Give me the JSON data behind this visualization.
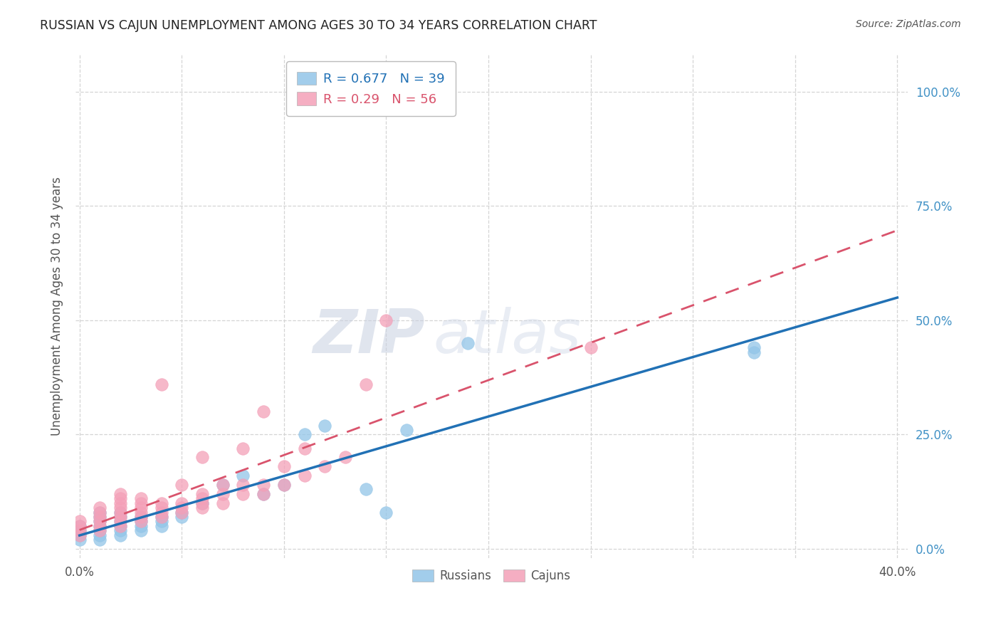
{
  "title": "RUSSIAN VS CAJUN UNEMPLOYMENT AMONG AGES 30 TO 34 YEARS CORRELATION CHART",
  "source": "Source: ZipAtlas.com",
  "ylabel": "Unemployment Among Ages 30 to 34 years",
  "xlim": [
    -0.002,
    0.405
  ],
  "ylim": [
    -0.02,
    1.08
  ],
  "xticks": [
    0.0,
    0.05,
    0.1,
    0.15,
    0.2,
    0.25,
    0.3,
    0.35,
    0.4
  ],
  "xticklabels_show": [
    "0.0%",
    "",
    "",
    "",
    "",
    "",
    "",
    "",
    "40.0%"
  ],
  "yticks": [
    0.0,
    0.25,
    0.5,
    0.75,
    1.0
  ],
  "yticklabels": [
    "0.0%",
    "25.0%",
    "50.0%",
    "75.0%",
    "100.0%"
  ],
  "russian_color": "#92c5e8",
  "cajun_color": "#f4a0b8",
  "russian_line_color": "#2171b5",
  "cajun_line_color": "#d9536c",
  "russian_R": 0.677,
  "russian_N": 39,
  "cajun_R": 0.29,
  "cajun_N": 56,
  "watermark_zip": "ZIP",
  "watermark_atlas": "atlas",
  "russian_scatter_x": [
    0.0,
    0.0,
    0.0,
    0.0,
    0.01,
    0.01,
    0.01,
    0.01,
    0.01,
    0.01,
    0.01,
    0.02,
    0.02,
    0.02,
    0.02,
    0.02,
    0.02,
    0.03,
    0.03,
    0.03,
    0.03,
    0.04,
    0.04,
    0.04,
    0.05,
    0.05,
    0.06,
    0.07,
    0.08,
    0.09,
    0.1,
    0.11,
    0.12,
    0.14,
    0.15,
    0.16,
    0.19,
    0.33,
    0.33
  ],
  "russian_scatter_y": [
    0.02,
    0.03,
    0.04,
    0.05,
    0.02,
    0.03,
    0.04,
    0.05,
    0.06,
    0.07,
    0.08,
    0.03,
    0.04,
    0.05,
    0.06,
    0.07,
    0.08,
    0.04,
    0.05,
    0.06,
    0.07,
    0.05,
    0.06,
    0.07,
    0.08,
    0.07,
    0.1,
    0.14,
    0.16,
    0.12,
    0.14,
    0.25,
    0.27,
    0.13,
    0.08,
    0.26,
    0.45,
    0.43,
    0.44
  ],
  "cajun_scatter_x": [
    0.0,
    0.0,
    0.0,
    0.0,
    0.01,
    0.01,
    0.01,
    0.01,
    0.01,
    0.01,
    0.02,
    0.02,
    0.02,
    0.02,
    0.02,
    0.02,
    0.02,
    0.02,
    0.03,
    0.03,
    0.03,
    0.03,
    0.03,
    0.03,
    0.04,
    0.04,
    0.04,
    0.04,
    0.04,
    0.05,
    0.05,
    0.05,
    0.05,
    0.06,
    0.06,
    0.06,
    0.06,
    0.06,
    0.07,
    0.07,
    0.07,
    0.08,
    0.08,
    0.08,
    0.09,
    0.09,
    0.09,
    0.1,
    0.1,
    0.11,
    0.11,
    0.12,
    0.13,
    0.14,
    0.15,
    0.25
  ],
  "cajun_scatter_y": [
    0.03,
    0.04,
    0.05,
    0.06,
    0.04,
    0.05,
    0.06,
    0.07,
    0.08,
    0.09,
    0.05,
    0.06,
    0.07,
    0.08,
    0.09,
    0.1,
    0.11,
    0.12,
    0.06,
    0.07,
    0.08,
    0.09,
    0.1,
    0.11,
    0.07,
    0.08,
    0.09,
    0.1,
    0.36,
    0.08,
    0.09,
    0.1,
    0.14,
    0.09,
    0.1,
    0.11,
    0.12,
    0.2,
    0.1,
    0.12,
    0.14,
    0.12,
    0.14,
    0.22,
    0.12,
    0.14,
    0.3,
    0.14,
    0.18,
    0.16,
    0.22,
    0.18,
    0.2,
    0.36,
    0.5,
    0.44
  ],
  "bg_color": "#ffffff",
  "grid_color": "#d5d5d5",
  "title_color": "#222222",
  "axis_label_color": "#555555",
  "ytick_color": "#4292c6",
  "xtick_color": "#555555"
}
